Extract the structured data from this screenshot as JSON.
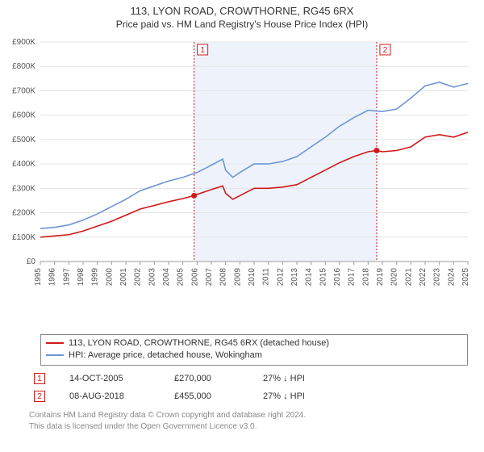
{
  "title_line1": "113, LYON ROAD, CROWTHORNE, RG45 6RX",
  "title_line2": "Price paid vs. HM Land Registry's House Price Index (HPI)",
  "chart": {
    "type": "line",
    "plot_background": "#ffffff",
    "shaded_band": {
      "from_year": 2005.8,
      "to_year": 2018.6,
      "fill": "#eef3fb"
    },
    "axes": {
      "x": {
        "min": 1995,
        "max": 2025,
        "ticks": [
          1995,
          1996,
          1997,
          1998,
          1999,
          2000,
          2001,
          2002,
          2003,
          2004,
          2005,
          2006,
          2007,
          2008,
          2009,
          2010,
          2011,
          2012,
          2013,
          2014,
          2015,
          2016,
          2017,
          2018,
          2019,
          2020,
          2021,
          2022,
          2023,
          2024,
          2025
        ],
        "tick_labels": [
          "1995",
          "1996",
          "1997",
          "1998",
          "1999",
          "2000",
          "2001",
          "2002",
          "2003",
          "2004",
          "2005",
          "2006",
          "2007",
          "2008",
          "2009",
          "2010",
          "2011",
          "2012",
          "2013",
          "2014",
          "2015",
          "2016",
          "2017",
          "2018",
          "2019",
          "2020",
          "2021",
          "2022",
          "2023",
          "2024",
          "2025"
        ],
        "tick_fontsize": 10,
        "tick_color": "#555555",
        "rotate": -90
      },
      "y": {
        "min": 0,
        "max": 900000,
        "ticks": [
          0,
          100000,
          200000,
          300000,
          400000,
          500000,
          600000,
          700000,
          800000,
          900000
        ],
        "tick_labels": [
          "£0",
          "£100K",
          "£200K",
          "£300K",
          "£400K",
          "£500K",
          "£600K",
          "£700K",
          "£800K",
          "£900K"
        ],
        "tick_fontsize": 10,
        "tick_color": "#555555"
      },
      "gridline_color": "#e4e4e4",
      "axis_line_color": "#999999"
    },
    "series": [
      {
        "name": "113, LYON ROAD, CROWTHORNE, RG45 6RX (detached house)",
        "color": "#d11919",
        "line_width": 1.6,
        "data": [
          [
            1995,
            100000
          ],
          [
            1996,
            105000
          ],
          [
            1997,
            110000
          ],
          [
            1998,
            125000
          ],
          [
            1999,
            145000
          ],
          [
            2000,
            165000
          ],
          [
            2001,
            190000
          ],
          [
            2002,
            215000
          ],
          [
            2003,
            230000
          ],
          [
            2004,
            245000
          ],
          [
            2005,
            258000
          ],
          [
            2005.79,
            270000
          ],
          [
            2006,
            275000
          ],
          [
            2007,
            295000
          ],
          [
            2007.8,
            310000
          ],
          [
            2008,
            280000
          ],
          [
            2008.5,
            255000
          ],
          [
            2009,
            270000
          ],
          [
            2010,
            300000
          ],
          [
            2011,
            300000
          ],
          [
            2012,
            305000
          ],
          [
            2013,
            315000
          ],
          [
            2014,
            345000
          ],
          [
            2015,
            375000
          ],
          [
            2016,
            405000
          ],
          [
            2017,
            430000
          ],
          [
            2018,
            450000
          ],
          [
            2018.6,
            455000
          ],
          [
            2019,
            450000
          ],
          [
            2020,
            455000
          ],
          [
            2021,
            470000
          ],
          [
            2022,
            510000
          ],
          [
            2023,
            520000
          ],
          [
            2024,
            510000
          ],
          [
            2025,
            530000
          ]
        ]
      },
      {
        "name": "HPI: Average price, detached house, Wokingham",
        "color": "#6f95d6",
        "line_width": 1.6,
        "data": [
          [
            1995,
            135000
          ],
          [
            1996,
            140000
          ],
          [
            1997,
            150000
          ],
          [
            1998,
            170000
          ],
          [
            1999,
            195000
          ],
          [
            2000,
            225000
          ],
          [
            2001,
            255000
          ],
          [
            2002,
            290000
          ],
          [
            2003,
            310000
          ],
          [
            2004,
            330000
          ],
          [
            2005,
            345000
          ],
          [
            2006,
            365000
          ],
          [
            2007,
            395000
          ],
          [
            2007.8,
            420000
          ],
          [
            2008,
            375000
          ],
          [
            2008.5,
            345000
          ],
          [
            2009,
            365000
          ],
          [
            2010,
            400000
          ],
          [
            2011,
            400000
          ],
          [
            2012,
            410000
          ],
          [
            2013,
            430000
          ],
          [
            2014,
            470000
          ],
          [
            2015,
            510000
          ],
          [
            2016,
            555000
          ],
          [
            2017,
            590000
          ],
          [
            2018,
            620000
          ],
          [
            2019,
            615000
          ],
          [
            2020,
            625000
          ],
          [
            2021,
            670000
          ],
          [
            2022,
            720000
          ],
          [
            2023,
            735000
          ],
          [
            2024,
            715000
          ],
          [
            2025,
            730000
          ]
        ]
      }
    ],
    "event_markers": [
      {
        "id": "1",
        "year": 2005.79,
        "value": 270000,
        "line_color": "#d11919",
        "box_border": "#d11919",
        "box_text": "#d11919",
        "dot_color": "#d11919"
      },
      {
        "id": "2",
        "year": 2018.6,
        "value": 455000,
        "line_color": "#d11919",
        "box_border": "#d11919",
        "box_text": "#d11919",
        "dot_color": "#d11919"
      }
    ]
  },
  "legend": {
    "items": [
      {
        "color": "#d11919",
        "label": "113, LYON ROAD, CROWTHORNE, RG45 6RX (detached house)"
      },
      {
        "color": "#6f95d6",
        "label": "HPI: Average price, detached house, Wokingham"
      }
    ]
  },
  "transactions": [
    {
      "marker": "1",
      "marker_color": "#d11919",
      "date": "14-OCT-2005",
      "price": "£270,000",
      "pct": "27% ↓ HPI"
    },
    {
      "marker": "2",
      "marker_color": "#d11919",
      "date": "08-AUG-2018",
      "price": "£455,000",
      "pct": "27% ↓ HPI"
    }
  ],
  "footer": {
    "line1": "Contains HM Land Registry data © Crown copyright and database right 2024.",
    "line2": "This data is licensed under the Open Government Licence v3.0."
  }
}
